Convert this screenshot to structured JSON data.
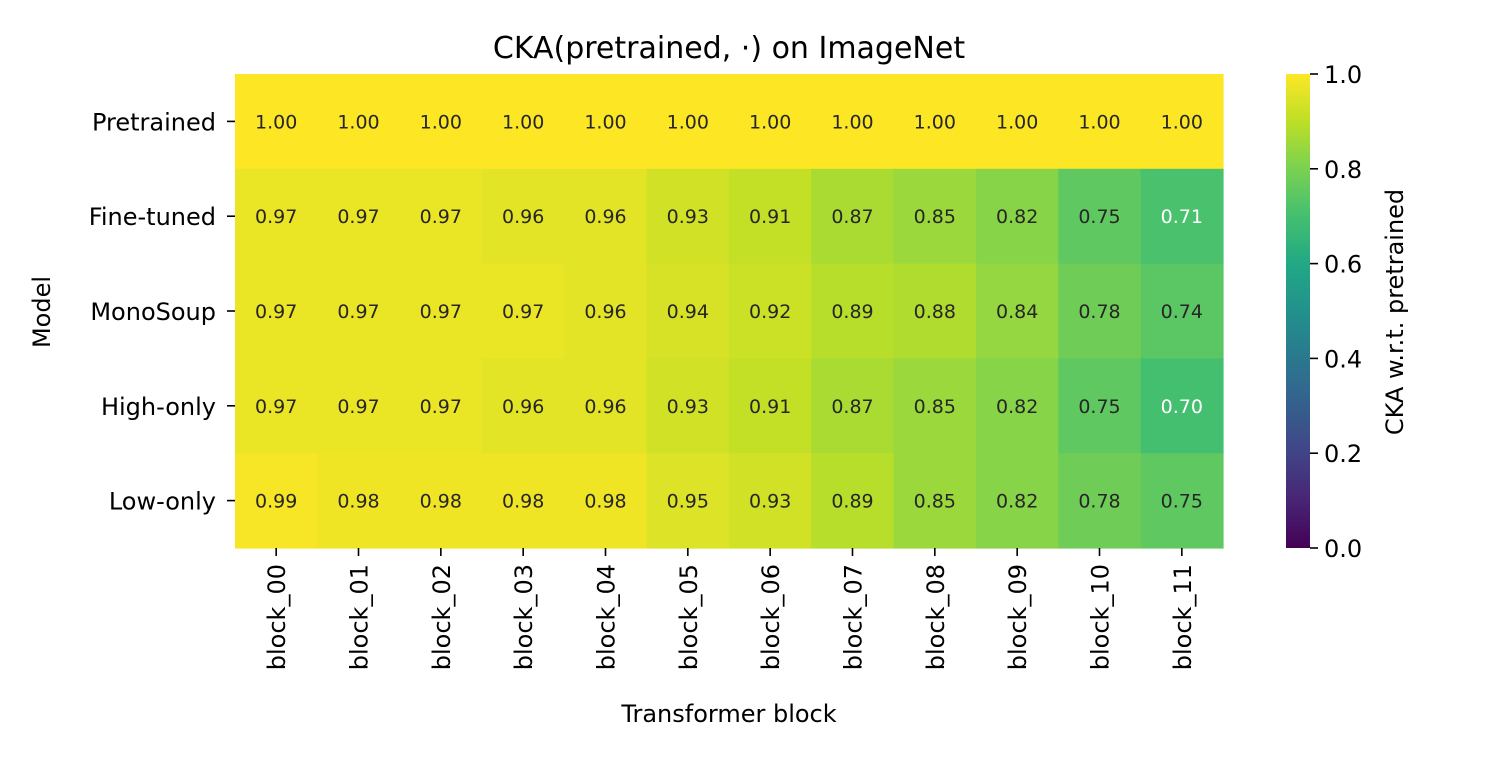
{
  "chart_data": {
    "type": "heatmap",
    "title": "CKA(pretrained, ·) on ImageNet",
    "xlabel": "Transformer block",
    "ylabel": "Model",
    "colorbar_label": "CKA w.r.t. pretrained",
    "colormap": "viridis",
    "vmin": 0.0,
    "vmax": 1.0,
    "colorbar_ticks": [
      "0.0",
      "0.2",
      "0.4",
      "0.6",
      "0.8",
      "1.0"
    ],
    "x_categories": [
      "block_00",
      "block_01",
      "block_02",
      "block_03",
      "block_04",
      "block_05",
      "block_06",
      "block_07",
      "block_08",
      "block_09",
      "block_10",
      "block_11"
    ],
    "y_categories": [
      "Pretrained",
      "Fine-tuned",
      "MonoSoup",
      "High-only",
      "Low-only"
    ],
    "values": [
      [
        1.0,
        1.0,
        1.0,
        1.0,
        1.0,
        1.0,
        1.0,
        1.0,
        1.0,
        1.0,
        1.0,
        1.0
      ],
      [
        0.97,
        0.97,
        0.97,
        0.96,
        0.96,
        0.93,
        0.91,
        0.87,
        0.85,
        0.82,
        0.75,
        0.71
      ],
      [
        0.97,
        0.97,
        0.97,
        0.97,
        0.96,
        0.94,
        0.92,
        0.89,
        0.88,
        0.84,
        0.78,
        0.74
      ],
      [
        0.97,
        0.97,
        0.97,
        0.96,
        0.96,
        0.93,
        0.91,
        0.87,
        0.85,
        0.82,
        0.75,
        0.7
      ],
      [
        0.99,
        0.98,
        0.98,
        0.98,
        0.98,
        0.95,
        0.93,
        0.89,
        0.85,
        0.82,
        0.78,
        0.75
      ]
    ],
    "value_format": "2 decimals",
    "legend": "colorbar-right"
  }
}
